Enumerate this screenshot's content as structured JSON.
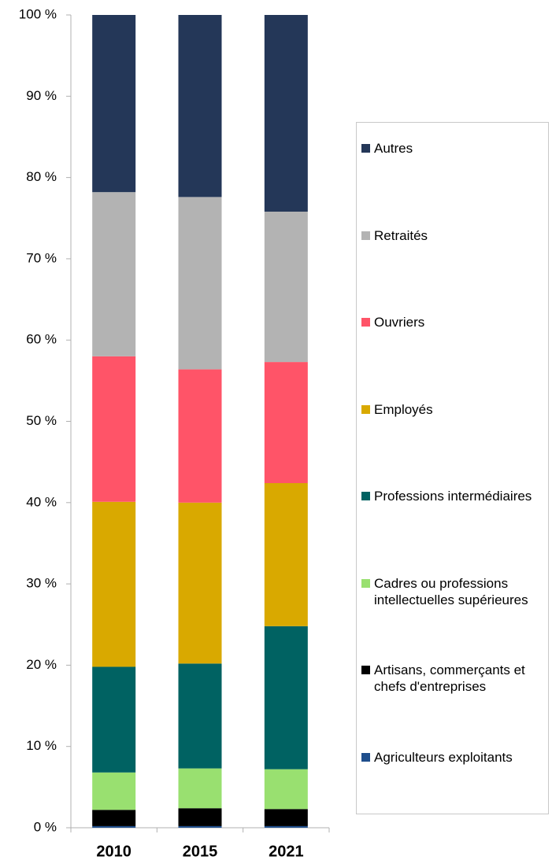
{
  "chart_data": {
    "type": "stacked_bar",
    "categories": [
      "2010",
      "2015",
      "2021"
    ],
    "series": [
      {
        "name": "Agriculteurs exploitants",
        "color": "#1f4e8c",
        "values": [
          0.2,
          0.2,
          0.2
        ]
      },
      {
        "name": "Artisans, commerçants et chefs d'entreprises",
        "color": "#000000",
        "values": [
          2.0,
          2.2,
          2.1
        ]
      },
      {
        "name": "Cadres ou professions intellectuelles supérieures",
        "color": "#99e070",
        "values": [
          4.6,
          4.9,
          4.9
        ]
      },
      {
        "name": "Professions intermédiaires",
        "color": "#006262",
        "values": [
          13.0,
          12.9,
          17.6
        ]
      },
      {
        "name": "Employés",
        "color": "#d9a900",
        "values": [
          20.3,
          19.8,
          17.6
        ]
      },
      {
        "name": "Ouvriers",
        "color": "#ff5468",
        "values": [
          17.9,
          16.4,
          14.9
        ]
      },
      {
        "name": "Retraités",
        "color": "#b3b3b3",
        "values": [
          20.2,
          21.2,
          18.5
        ]
      },
      {
        "name": "Autres",
        "color": "#243758",
        "values": [
          21.8,
          22.4,
          24.2
        ]
      }
    ],
    "ylim": [
      0,
      100
    ],
    "yticks": [
      {
        "value": 0,
        "label": "0 %"
      },
      {
        "value": 10,
        "label": "10 %"
      },
      {
        "value": 20,
        "label": "20 %"
      },
      {
        "value": 30,
        "label": "30 %"
      },
      {
        "value": 40,
        "label": "40 %"
      },
      {
        "value": 50,
        "label": "50 %"
      },
      {
        "value": 60,
        "label": "60 %"
      },
      {
        "value": 70,
        "label": "70 %"
      },
      {
        "value": 80,
        "label": "80 %"
      },
      {
        "value": 90,
        "label": "90 %"
      },
      {
        "value": 100,
        "label": "100 %"
      }
    ],
    "legend": "right"
  }
}
